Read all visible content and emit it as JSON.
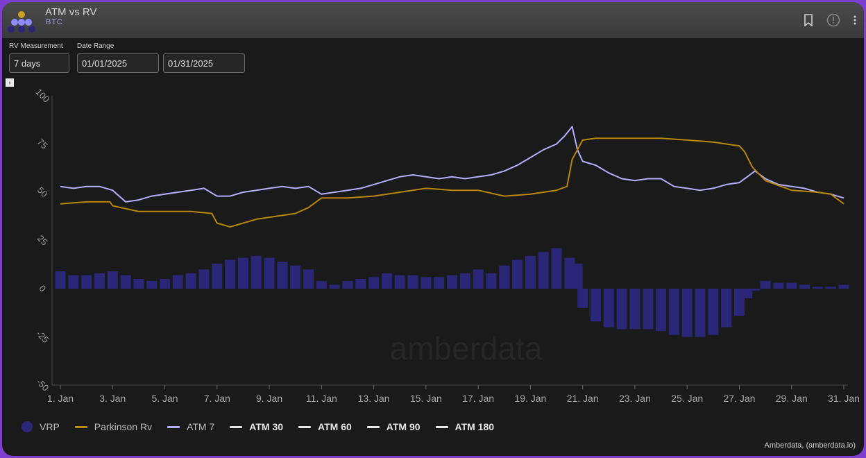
{
  "header": {
    "title": "ATM vs RV",
    "subtitle": "BTC",
    "icons": [
      "bookmark-icon",
      "info-icon",
      "more-vertical-icon"
    ]
  },
  "filters": {
    "rv_label": "RV Measurement",
    "rv_value": "7 days",
    "date_label": "Date Range",
    "date_start": "01/01/2025",
    "date_end": "01/31/2025"
  },
  "watermark": "amberdata",
  "credit": "Amberdata, (amberdata.io)",
  "legend": [
    {
      "label": "VRP",
      "color": "#2a2678",
      "kind": "dot"
    },
    {
      "label": "Parkinson Rv",
      "color": "#b8860b",
      "kind": "line"
    },
    {
      "label": "ATM 7",
      "color": "#b4b0ff",
      "kind": "line"
    },
    {
      "label": "ATM 30",
      "color": "#e6e6e6",
      "kind": "line"
    },
    {
      "label": "ATM 60",
      "color": "#e6e6e6",
      "kind": "line"
    },
    {
      "label": "ATM 90",
      "color": "#e6e6e6",
      "kind": "line"
    },
    {
      "label": "ATM 180",
      "color": "#e6e6e6",
      "kind": "line"
    }
  ],
  "chart_data": {
    "type": "line",
    "ylim": [
      -50,
      100
    ],
    "yticks": [
      "100",
      "75",
      "50",
      "25",
      "0",
      "-25",
      "-50"
    ],
    "xlim": [
      1,
      31
    ],
    "xticks": [
      {
        "x": 1,
        "label": "1. Jan"
      },
      {
        "x": 3,
        "label": "3. Jan"
      },
      {
        "x": 5,
        "label": "5. Jan"
      },
      {
        "x": 7,
        "label": "7. Jan"
      },
      {
        "x": 9,
        "label": "9. Jan"
      },
      {
        "x": 11,
        "label": "11. Jan"
      },
      {
        "x": 13,
        "label": "13. Jan"
      },
      {
        "x": 15,
        "label": "15. Jan"
      },
      {
        "x": 17,
        "label": "17. Jan"
      },
      {
        "x": 19,
        "label": "19. Jan"
      },
      {
        "x": 21,
        "label": "21. Jan"
      },
      {
        "x": 23,
        "label": "23. Jan"
      },
      {
        "x": 25,
        "label": "25. Jan"
      },
      {
        "x": 27,
        "label": "27. Jan"
      },
      {
        "x": 29,
        "label": "29. Jan"
      },
      {
        "x": 31,
        "label": "31. Jan"
      }
    ],
    "grid": false,
    "legend_position": "bottom",
    "series": [
      {
        "name": "ATM 7",
        "color": "#b4b0ff",
        "x": [
          1,
          1.5,
          2,
          2.5,
          3,
          3.5,
          4,
          4.5,
          5,
          5.5,
          6,
          6.5,
          7,
          7.5,
          8,
          8.5,
          9,
          9.5,
          10,
          10.5,
          11,
          11.5,
          12,
          12.5,
          13,
          13.5,
          14,
          14.5,
          15,
          15.5,
          16,
          16.5,
          17,
          17.5,
          18,
          18.5,
          19,
          19.5,
          20,
          20.3,
          20.6,
          20.8,
          21,
          21.5,
          22,
          22.5,
          23,
          23.5,
          24,
          24.5,
          25,
          25.5,
          26,
          26.5,
          27,
          27.3,
          27.6,
          28,
          28.5,
          29,
          29.5,
          30,
          30.5,
          31
        ],
        "values": [
          53,
          52,
          53,
          53,
          51,
          45,
          46,
          48,
          49,
          50,
          51,
          52,
          48,
          48,
          50,
          51,
          52,
          53,
          52,
          53,
          49,
          50,
          51,
          52,
          54,
          56,
          58,
          59,
          58,
          57,
          58,
          57,
          58,
          59,
          61,
          64,
          68,
          72,
          75,
          79,
          84,
          72,
          66,
          64,
          60,
          57,
          56,
          57,
          57,
          53,
          52,
          51,
          52,
          54,
          55,
          58,
          61,
          57,
          54,
          53,
          52,
          50,
          49,
          47
        ]
      },
      {
        "name": "Parkinson Rv",
        "color": "#b8860b",
        "x": [
          1,
          2,
          2.9,
          3,
          4,
          5,
          6,
          6.8,
          7,
          7.5,
          8,
          8.5,
          9,
          10,
          10.5,
          11,
          12,
          13,
          14,
          15,
          16,
          17,
          18,
          19,
          20,
          20.4,
          20.6,
          20.8,
          21,
          21.5,
          22,
          23,
          24,
          25,
          26,
          27,
          27.2,
          27.5,
          28,
          29,
          30,
          30.5,
          31
        ],
        "values": [
          44,
          45,
          45,
          43,
          40,
          40,
          40,
          39,
          34,
          32,
          34,
          36,
          37,
          39,
          42,
          47,
          47,
          48,
          50,
          52,
          51,
          51,
          48,
          49,
          51,
          53,
          67,
          72,
          77,
          78,
          78,
          78,
          78,
          77,
          76,
          74,
          71,
          63,
          56,
          51,
          50,
          49,
          44
        ]
      }
    ],
    "bars": {
      "name": "VRP",
      "color": "#2a2678",
      "x": [
        1,
        1.5,
        2,
        2.5,
        3,
        3.5,
        4,
        4.5,
        5,
        5.5,
        6,
        6.5,
        7,
        7.5,
        8,
        8.5,
        9,
        9.5,
        10,
        10.5,
        11,
        11.5,
        12,
        12.5,
        13,
        13.5,
        14,
        14.5,
        15,
        15.5,
        16,
        16.5,
        17,
        17.5,
        18,
        18.5,
        19,
        19.5,
        20,
        20.5,
        20.8,
        21,
        21.5,
        22,
        22.5,
        23,
        23.5,
        24,
        24.5,
        25,
        25.5,
        26,
        26.5,
        27,
        27.3,
        27.6,
        28,
        28.5,
        29,
        29.5,
        30,
        30.5,
        31
      ],
      "values": [
        9,
        7,
        7,
        8,
        9,
        7,
        5,
        4,
        5,
        7,
        8,
        10,
        13,
        15,
        16,
        17,
        16,
        14,
        12,
        10,
        4,
        2,
        4,
        5,
        6,
        8,
        7,
        7,
        6,
        6,
        7,
        8,
        10,
        8,
        12,
        15,
        17,
        19,
        21,
        16,
        13,
        -10,
        -17,
        -20,
        -21,
        -21,
        -21,
        -22,
        -24,
        -25,
        -25,
        -24,
        -20,
        -14,
        -5,
        -1,
        4,
        3,
        3,
        2,
        1,
        1,
        2
      ]
    }
  }
}
